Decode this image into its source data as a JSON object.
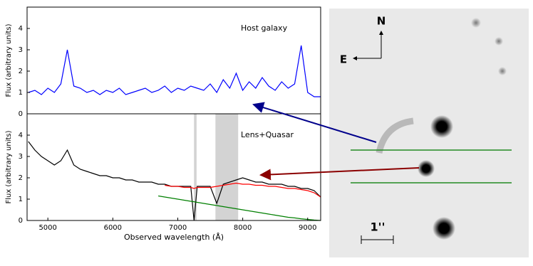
{
  "chart_data": [
    {
      "type": "line",
      "annotation": "Host galaxy",
      "ylabel": "Flux (arbitrary units)",
      "xlim": [
        4680,
        9200
      ],
      "ylim": [
        0,
        5
      ],
      "yticks": [
        0,
        1,
        2,
        3,
        4
      ],
      "x": [
        4700,
        4800,
        4900,
        5000,
        5100,
        5200,
        5300,
        5400,
        5500,
        5600,
        5700,
        5800,
        5900,
        6000,
        6100,
        6200,
        6300,
        6400,
        6500,
        6600,
        6700,
        6800,
        6900,
        7000,
        7100,
        7200,
        7300,
        7400,
        7500,
        7600,
        7700,
        7800,
        7900,
        8000,
        8100,
        8200,
        8300,
        8400,
        8500,
        8600,
        8700,
        8800,
        8900,
        9000,
        9100,
        9200
      ],
      "series": [
        {
          "color": "#0000ff",
          "values": [
            1.0,
            1.1,
            0.9,
            1.2,
            1.0,
            1.4,
            3.0,
            1.3,
            1.2,
            1.0,
            1.1,
            0.9,
            1.1,
            1.0,
            1.2,
            0.9,
            1.0,
            1.1,
            1.2,
            1.0,
            1.1,
            1.3,
            1.0,
            1.2,
            1.1,
            1.3,
            1.2,
            1.1,
            1.4,
            1.0,
            1.6,
            1.2,
            1.9,
            1.1,
            1.5,
            1.2,
            1.7,
            1.3,
            1.1,
            1.5,
            1.2,
            1.4,
            3.2,
            1.0,
            0.8,
            0.8
          ]
        }
      ]
    },
    {
      "type": "line",
      "annotation": "Lens+Quasar",
      "ylabel": "Flux (arbitrary units)",
      "xlabel": "Observed wavelength (Å)",
      "xlim": [
        4680,
        9200
      ],
      "ylim": [
        0,
        5
      ],
      "yticks": [
        0,
        1,
        2,
        3,
        4
      ],
      "xticks": [
        5000,
        6000,
        7000,
        8000,
        9000
      ],
      "shaded_regions": [
        [
          7250,
          7290
        ],
        [
          7580,
          7930
        ]
      ],
      "shade_color": "#c8c8c8",
      "x": [
        4700,
        4800,
        4900,
        5000,
        5100,
        5200,
        5300,
        5400,
        5500,
        5600,
        5700,
        5800,
        5900,
        6000,
        6100,
        6200,
        6300,
        6400,
        6500,
        6600,
        6700,
        6800,
        6900,
        7000,
        7100,
        7200,
        7250,
        7300,
        7400,
        7500,
        7600,
        7700,
        7800,
        7900,
        8000,
        8100,
        8200,
        8300,
        8400,
        8500,
        8600,
        8700,
        8800,
        8900,
        9000,
        9100,
        9200
      ],
      "series": [
        {
          "color": "#000000",
          "values": [
            3.7,
            3.3,
            3.0,
            2.8,
            2.6,
            2.8,
            3.3,
            2.6,
            2.4,
            2.3,
            2.2,
            2.1,
            2.1,
            2.0,
            2.0,
            1.9,
            1.9,
            1.8,
            1.8,
            1.8,
            1.7,
            1.7,
            1.6,
            1.6,
            1.6,
            1.6,
            0.0,
            1.6,
            1.6,
            1.6,
            0.8,
            1.7,
            1.8,
            1.9,
            2.0,
            1.9,
            1.8,
            1.8,
            1.7,
            1.7,
            1.7,
            1.6,
            1.6,
            1.5,
            1.5,
            1.4,
            1.1
          ]
        },
        {
          "color": "#ff0000",
          "values": [
            null,
            null,
            null,
            null,
            null,
            null,
            null,
            null,
            null,
            null,
            null,
            null,
            null,
            null,
            null,
            null,
            null,
            null,
            null,
            null,
            null,
            1.65,
            1.6,
            1.6,
            1.55,
            1.55,
            1.5,
            1.55,
            1.55,
            1.55,
            1.6,
            1.65,
            1.7,
            1.75,
            1.7,
            1.7,
            1.65,
            1.65,
            1.6,
            1.6,
            1.55,
            1.5,
            1.5,
            1.45,
            1.4,
            1.3,
            1.1
          ]
        },
        {
          "color": "#007f00",
          "values": [
            null,
            null,
            null,
            null,
            null,
            null,
            null,
            null,
            null,
            null,
            null,
            null,
            null,
            null,
            null,
            null,
            null,
            null,
            null,
            null,
            1.15,
            1.1,
            1.05,
            1.0,
            0.95,
            0.9,
            0.88,
            0.85,
            0.8,
            0.75,
            0.7,
            0.65,
            0.6,
            0.55,
            0.5,
            0.45,
            0.4,
            0.35,
            0.3,
            0.25,
            0.2,
            0.15,
            0.12,
            0.08,
            0.05,
            0.02,
            0.0
          ]
        }
      ]
    }
  ],
  "image": {
    "north": "N",
    "east": "E",
    "scale": "1''"
  }
}
